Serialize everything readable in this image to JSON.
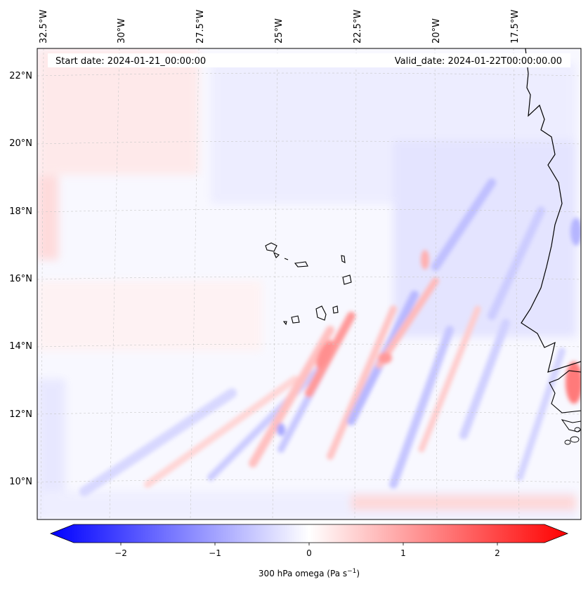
{
  "map": {
    "start_label": "Start date: 2024-01-21_00:00:00",
    "valid_label": "Valid_date: 2024-01-22T00:00:00.00",
    "lon_labels": [
      "32.5°W",
      "30°W",
      "27.5°W",
      "25°W",
      "22.5°W",
      "20°W",
      "17.5°W"
    ],
    "lat_labels": [
      "22°N",
      "20°N",
      "18°N",
      "16°N",
      "14°N",
      "12°N",
      "10°N"
    ]
  },
  "colorbar": {
    "ticks": [
      "−2",
      "−1",
      "0",
      "1",
      "2"
    ],
    "label": "300 hPa omega (Pa s",
    "label_sup": "−1",
    "label_close": ")",
    "neg_color": "#0000ff",
    "pos_color": "#ff0000"
  }
}
